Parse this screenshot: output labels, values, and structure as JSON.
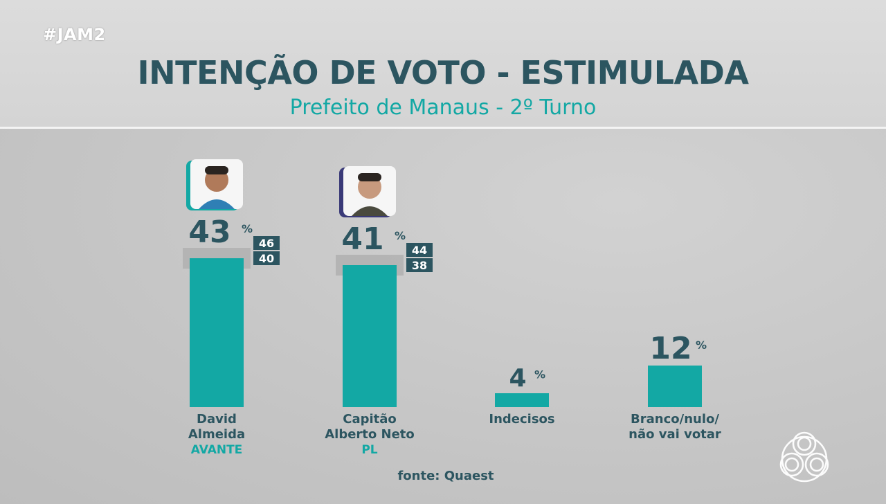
{
  "header": {
    "hashtag": "#JAM2",
    "title": "INTENÇÃO DE VOTO - ESTIMULADA",
    "subtitle": "Prefeito de Manaus - 2º Turno"
  },
  "footer": {
    "source": "fonte: Quaest"
  },
  "colors": {
    "bar": "#13a8a4",
    "range_band": "#b0b0b0",
    "value_text": "#2c5560",
    "label_text": "#2c5560",
    "party_text": "#13a8a4",
    "range_box": "#2c5560",
    "range_box_text": "#ffffff"
  },
  "chart_data": {
    "type": "bar",
    "title": "INTENÇÃO DE VOTO - ESTIMULADA",
    "subtitle": "Prefeito de Manaus - 2º Turno",
    "unit": "%",
    "ylim": [
      0,
      45
    ],
    "grid": false,
    "categories": [
      [
        "David",
        "Almeida"
      ],
      [
        "Capitão",
        "Alberto Neto"
      ],
      [
        "Indecisos"
      ],
      [
        "Branco/nulo/",
        "não vai votar"
      ]
    ],
    "parties": [
      "AVANTE",
      "PL",
      "",
      ""
    ],
    "values": [
      43,
      41,
      4,
      12
    ],
    "value_labels": [
      "43",
      "41",
      "4",
      "12"
    ],
    "ranges": [
      {
        "high": 46,
        "low": 40
      },
      {
        "high": 44,
        "low": 38
      },
      null,
      null
    ],
    "candidate_photo": [
      true,
      true,
      false,
      false
    ]
  }
}
